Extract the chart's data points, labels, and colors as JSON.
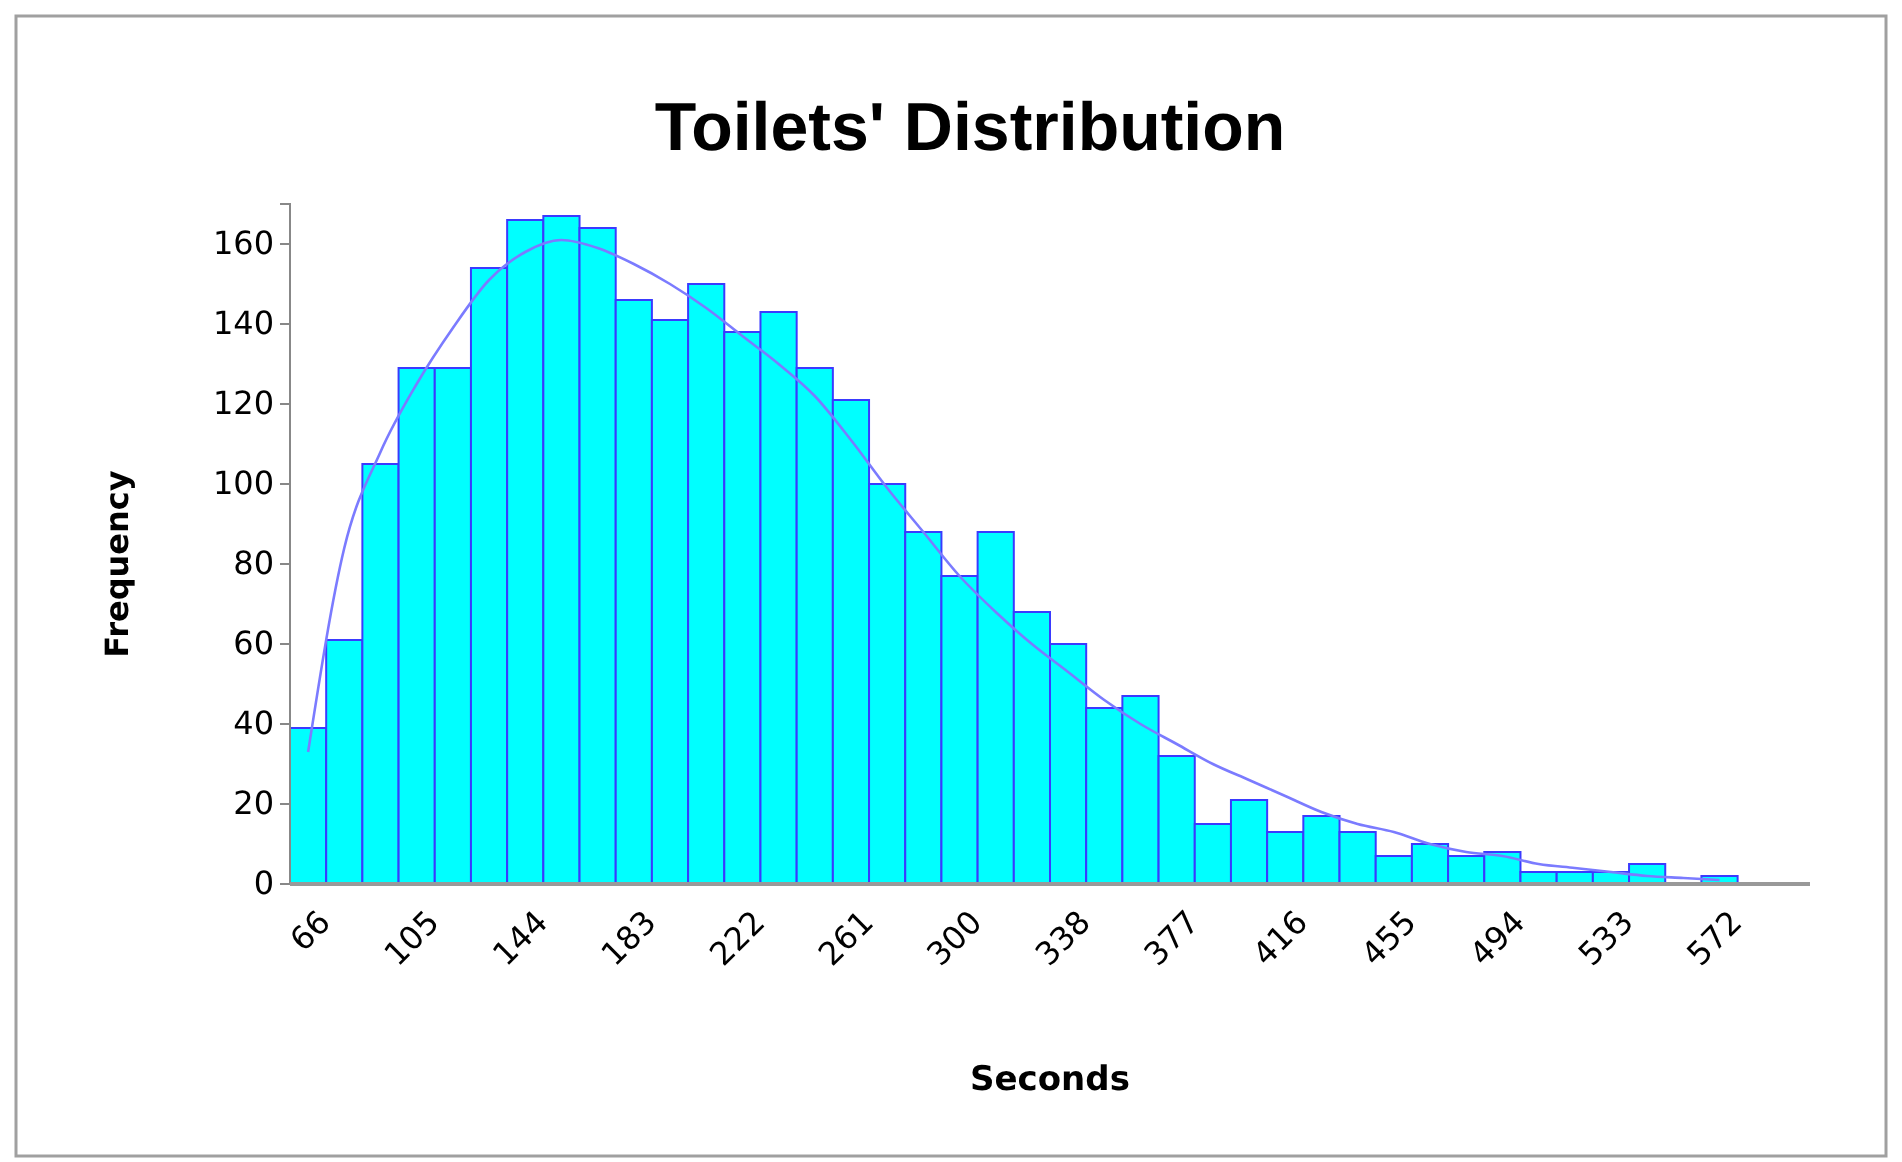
{
  "chart_data": {
    "type": "bar",
    "title": "Toilets' Distribution",
    "xlabel": "Seconds",
    "ylabel": "Frequency",
    "categories": [
      "66",
      null,
      null,
      "105",
      null,
      null,
      "144",
      null,
      null,
      "183",
      null,
      null,
      "222",
      null,
      null,
      "261",
      null,
      null,
      "300",
      null,
      null,
      "338",
      null,
      null,
      "377",
      null,
      null,
      "416",
      null,
      null,
      "455",
      null,
      null,
      "494",
      null,
      null,
      "533",
      null,
      null,
      "572",
      null,
      null
    ],
    "series": [
      {
        "color": "#00ffff",
        "values": [
          39,
          61,
          105,
          129,
          129,
          154,
          166,
          167,
          164,
          146,
          141,
          150,
          138,
          143,
          129,
          121,
          100,
          88,
          77,
          88,
          68,
          60,
          44,
          47,
          32,
          15,
          21,
          13,
          17,
          13,
          7,
          10,
          7,
          8,
          3,
          3,
          3,
          5,
          0,
          2,
          0,
          0
        ]
      },
      {
        "type": "line",
        "color": "#7b7bff",
        "values": [
          33,
          84,
          108,
          125,
          139,
          151,
          158,
          161,
          159,
          155,
          150,
          144,
          137,
          130,
          122,
          111,
          99,
          88,
          77,
          68,
          60,
          53,
          46,
          40,
          35,
          30,
          26,
          22,
          18,
          15,
          13,
          10,
          8,
          7,
          5,
          4,
          3,
          2,
          1.5,
          1,
          null,
          null
        ]
      }
    ],
    "ylim": [
      0,
      170
    ],
    "yticks": [
      0,
      20,
      40,
      60,
      80,
      100,
      120,
      140,
      160
    ],
    "grid": false,
    "marker": "none"
  }
}
